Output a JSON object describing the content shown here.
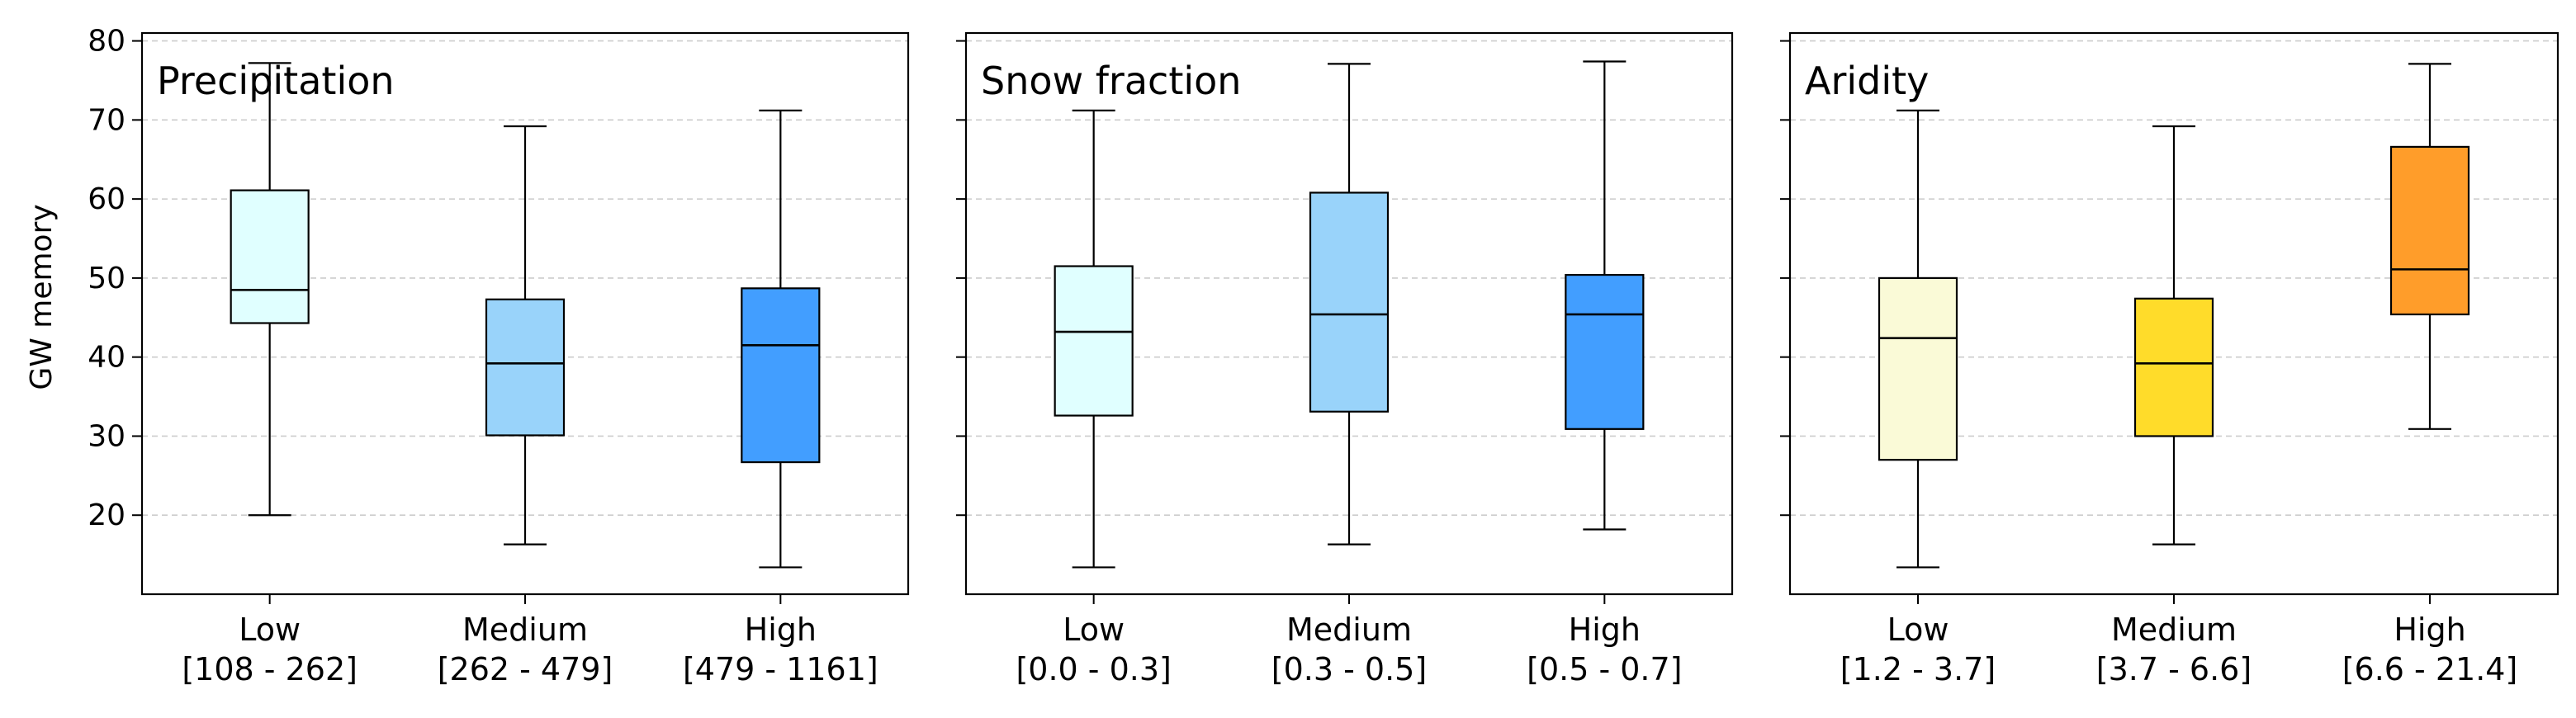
{
  "chart_data": {
    "type": "box",
    "ylabel": "GW memory",
    "ylim": [
      10,
      81
    ],
    "yticks": [
      20,
      30,
      40,
      50,
      60,
      70,
      80
    ],
    "grid": "horizontal dashed",
    "panels": [
      {
        "title": "Precipitation",
        "categories": [
          {
            "name": "Low",
            "range": "[108 - 262]",
            "color": "#e0ffff",
            "whisker_low": 20,
            "q1": 44.3,
            "median": 48.5,
            "q3": 61.1,
            "whisker_high": 77.2
          },
          {
            "name": "Medium",
            "range": "[262 - 479]",
            "color": "#99d3fa",
            "whisker_low": 16.3,
            "q1": 30.1,
            "median": 39.2,
            "q3": 47.3,
            "whisker_high": 69.2
          },
          {
            "name": "High",
            "range": "[479 - 1161]",
            "color": "#429eff",
            "whisker_low": 13.4,
            "q1": 26.7,
            "median": 41.5,
            "q3": 48.7,
            "whisker_high": 71.2
          }
        ]
      },
      {
        "title": "Snow fraction",
        "categories": [
          {
            "name": "Low",
            "range": "[0.0 - 0.3]",
            "color": "#e0ffff",
            "whisker_low": 13.4,
            "q1": 32.6,
            "median": 43.2,
            "q3": 51.5,
            "whisker_high": 71.2
          },
          {
            "name": "Medium",
            "range": "[0.3 - 0.5]",
            "color": "#99d3fa",
            "whisker_low": 16.3,
            "q1": 33.1,
            "median": 45.4,
            "q3": 60.8,
            "whisker_high": 77.1
          },
          {
            "name": "High",
            "range": "[0.5 - 0.7]",
            "color": "#429eff",
            "whisker_low": 18.2,
            "q1": 30.9,
            "median": 45.4,
            "q3": 50.4,
            "whisker_high": 77.4
          }
        ]
      },
      {
        "title": "Aridity",
        "categories": [
          {
            "name": "Low",
            "range": "[1.2 - 3.7]",
            "color": "#fafad7",
            "whisker_low": 13.4,
            "q1": 27.0,
            "median": 42.4,
            "q3": 50.0,
            "whisker_high": 71.2
          },
          {
            "name": "Medium",
            "range": "[3.7 - 6.6]",
            "color": "#ffdc2a",
            "whisker_low": 16.3,
            "q1": 30.0,
            "median": 39.2,
            "q3": 47.4,
            "whisker_high": 69.2
          },
          {
            "name": "High",
            "range": "[6.6 - 21.4]",
            "color": "#ff9d2a",
            "whisker_low": 30.9,
            "q1": 45.4,
            "median": 51.1,
            "q3": 66.6,
            "whisker_high": 77.1
          }
        ]
      }
    ]
  }
}
